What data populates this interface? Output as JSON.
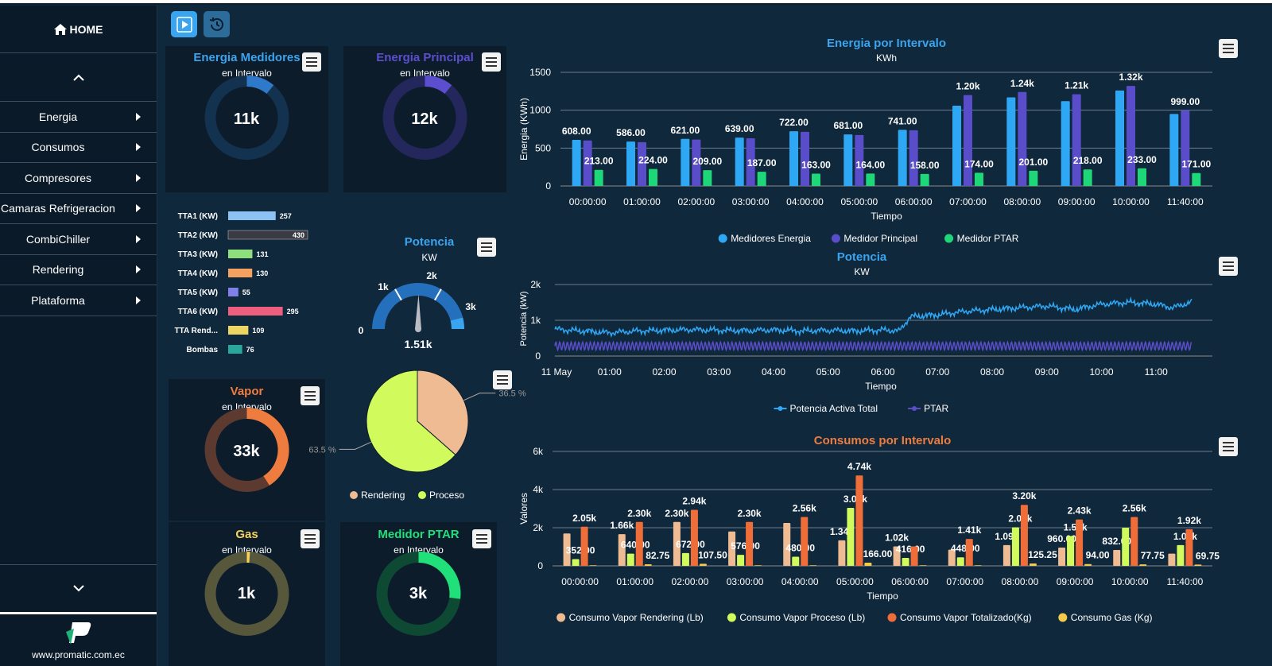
{
  "sidebar": {
    "home_label": "HOME",
    "items": [
      {
        "label": "Energia"
      },
      {
        "label": "Consumos"
      },
      {
        "label": "Compresores"
      },
      {
        "label": "Camaras Refrigeracion"
      },
      {
        "label": "CombiChiller"
      },
      {
        "label": "Rendering"
      },
      {
        "label": "Plataforma"
      }
    ],
    "footer_url": "www.promatic.com.ec"
  },
  "gauges": {
    "energia_medidores": {
      "title": "Energia Medidores",
      "subtitle": "en Intervalo",
      "value": "11k",
      "fraction": 0.11,
      "color": "#2e79c9",
      "track": "#13324f"
    },
    "energia_principal": {
      "title": "Energia Principal",
      "subtitle": "en Intervalo",
      "value": "12k",
      "fraction": 0.11,
      "color": "#5b4fd0",
      "track": "#23275c"
    },
    "vapor": {
      "title": "Vapor",
      "subtitle": "en Intervalo",
      "value": "33k",
      "fraction": 0.41,
      "color": "#ee7c3f",
      "track": "#5c3a30"
    },
    "gas": {
      "title": "Gas",
      "subtitle": "en Intervalo",
      "value": "1k",
      "fraction": 0.01,
      "color": "#f5d25a",
      "track": "#57573c"
    },
    "medidor_ptar": {
      "title": "Medidor PTAR",
      "subtitle": "en Intervalo",
      "value": "3k",
      "fraction": 0.27,
      "color": "#20e07a",
      "track": "#0e4a33"
    }
  },
  "tta_bars": {
    "max": 430,
    "items": [
      {
        "label": "TTA1 (KW)",
        "value": 257,
        "color": "#8bc1f3"
      },
      {
        "label": "TTA2 (KW)",
        "value": 430,
        "color": "#3a3a42"
      },
      {
        "label": "TTA3 (KW)",
        "value": 131,
        "color": "#8fe07c"
      },
      {
        "label": "TTA4 (KW)",
        "value": 130,
        "color": "#f5a160"
      },
      {
        "label": "TTA5 (KW)",
        "value": 55,
        "color": "#7f80e8"
      },
      {
        "label": "TTA6 (KW)",
        "value": 295,
        "color": "#ee5e7f"
      },
      {
        "label": "TTA Rend...",
        "value": 109,
        "color": "#ecd563"
      },
      {
        "label": "Bombas",
        "value": 76,
        "color": "#2aa79a"
      }
    ]
  },
  "potencia_gauge": {
    "title": "Potencia",
    "subtitle": "KW",
    "value": "1.51k",
    "numeric": 1510,
    "max": 3000,
    "ticks": [
      "0",
      "1k",
      "2k",
      "3k"
    ]
  },
  "pie": {
    "slices": [
      {
        "name": "Rendering",
        "value": 36.5,
        "label": "36.5 %",
        "color": "#efbb92"
      },
      {
        "name": "Proceso",
        "value": 63.5,
        "label": "63.5 %",
        "color": "#d1fa5d"
      }
    ]
  },
  "chart_data": [
    {
      "type": "bar",
      "title": "Energia por Intervalo",
      "subtitle": "KWh",
      "xlabel": "Tiempo",
      "ylabel": "Energia (KWh)",
      "ylim": [
        0,
        1500
      ],
      "yticks": [
        0,
        500,
        1000,
        1500
      ],
      "categories": [
        "00:00:00",
        "01:00:00",
        "02:00:00",
        "03:00:00",
        "04:00:00",
        "05:00:00",
        "06:00:00",
        "07:00:00",
        "08:00:00",
        "09:00:00",
        "10:00:00",
        "11:40:00"
      ],
      "series": [
        {
          "name": "Medidores Energia",
          "color": "#2ea8f5",
          "values": [
            608,
            586,
            621,
            639,
            722,
            681,
            741,
            1060,
            1170,
            1120,
            1260,
            950
          ],
          "labels": [
            "608.00",
            "586.00",
            "621.00",
            "639.00",
            "722.00",
            "681.00",
            "741.00",
            "",
            "",
            "",
            "",
            ""
          ]
        },
        {
          "name": "Medidor Principal",
          "color": "#5a4dc9",
          "values": [
            600,
            578,
            612,
            630,
            715,
            672,
            735,
            1200,
            1240,
            1210,
            1320,
            999
          ],
          "labels": [
            "",
            "",
            "",
            "",
            "",
            "",
            "",
            "1.20k",
            "1.24k",
            "1.21k",
            "1.32k",
            "999.00"
          ]
        },
        {
          "name": "Medidor PTAR",
          "color": "#1ed778",
          "values": [
            213,
            224,
            209,
            187,
            163,
            164,
            158,
            174,
            201,
            218,
            233,
            171
          ],
          "labels": [
            "213.00",
            "224.00",
            "209.00",
            "187.00",
            "163.00",
            "164.00",
            "158.00",
            "174.00",
            "201.00",
            "218.00",
            "233.00",
            "171.00"
          ]
        }
      ],
      "legend": "bottom"
    },
    {
      "type": "line",
      "title": "Potencia",
      "subtitle": "KW",
      "xlabel": "Tiempo",
      "ylabel": "Potencia (kW)",
      "ylim": [
        0,
        2000
      ],
      "yticks": [
        "0",
        "1k",
        "2k"
      ],
      "xticks": [
        "11 May",
        "01:00",
        "02:00",
        "03:00",
        "04:00",
        "05:00",
        "06:00",
        "07:00",
        "08:00",
        "09:00",
        "10:00",
        "11:00"
      ],
      "series": [
        {
          "name": "Potencia Activa Total",
          "color": "#2ea8f5",
          "x": [
            0,
            0.5,
            1,
            1.5,
            2,
            2.5,
            3,
            3.5,
            4,
            4.5,
            5,
            5.5,
            6,
            6.3,
            6.5,
            7,
            7.5,
            8,
            8.5,
            9,
            9.5,
            10,
            10.5,
            11,
            11.3,
            11.65
          ],
          "values": [
            750,
            700,
            650,
            700,
            720,
            740,
            720,
            710,
            730,
            700,
            720,
            700,
            730,
            700,
            1100,
            1150,
            1250,
            1300,
            1350,
            1400,
            1300,
            1450,
            1500,
            1450,
            1350,
            1510
          ]
        },
        {
          "name": "PTAR",
          "color": "#5a4dc9",
          "x": [
            0,
            11.65
          ],
          "values": [
            280,
            280
          ],
          "amplitude": 110
        }
      ],
      "legend": "bottom"
    },
    {
      "type": "bar",
      "title": "Consumos por Intervalo",
      "xlabel": "Tiempo",
      "ylabel": "Valores",
      "ylim": [
        0,
        6000
      ],
      "yticks": [
        "0",
        "2k",
        "4k",
        "6k"
      ],
      "categories": [
        "00:00:00",
        "01:00:00",
        "02:00:00",
        "03:00:00",
        "04:00:00",
        "05:00:00",
        "06:00:00",
        "07:00:00",
        "08:00:00",
        "09:00:00",
        "10:00:00",
        "11:40:00"
      ],
      "series": [
        {
          "name": "Consumo Vapor Rendering (Lb)",
          "color": "#efbb92",
          "values": [
            1700,
            1660,
            2300,
            1800,
            2250,
            1340,
            1020,
            850,
            1090,
            960,
            832,
            640
          ],
          "labels": [
            "",
            "1.66k",
            "2.30k",
            "",
            "",
            "1.34k",
            "1.02k",
            "",
            "1.09k",
            "960.00",
            "832.00",
            ""
          ]
        },
        {
          "name": "Consumo Vapor Proceso (Lb)",
          "color": "#d1fa5d",
          "values": [
            352,
            640,
            672,
            576,
            480,
            3040,
            416,
            448,
            2020,
            1570,
            2000,
            1090
          ],
          "labels": [
            "352.00",
            "640.00",
            "672.00",
            "576.00",
            "480.00",
            "3.04k",
            "416.00",
            "448.00",
            "2.02k",
            "1.57k",
            "",
            "1.09k"
          ]
        },
        {
          "name": "Consumo Vapor Totalizado(Kg)",
          "color": "#ee6d38",
          "values": [
            2050,
            2300,
            2940,
            2300,
            2560,
            4740,
            1020,
            1410,
            3200,
            2430,
            2560,
            1920
          ],
          "labels": [
            "2.05k",
            "2.30k",
            "2.94k",
            "2.30k",
            "2.56k",
            "4.74k",
            "",
            "1.41k",
            "3.20k",
            "2.43k",
            "2.56k",
            "1.92k"
          ]
        },
        {
          "name": "Consumo Gas (Kg)",
          "color": "#f5c94c",
          "values": [
            30,
            82.75,
            107.5,
            30,
            30,
            166,
            30,
            30,
            125.25,
            94,
            77.75,
            69.75
          ],
          "labels": [
            "",
            "82.75",
            "107.50",
            "",
            "",
            "166.00",
            "",
            "",
            "125.25",
            "94.00",
            "77.75",
            "69.75"
          ]
        }
      ],
      "legend": "bottom"
    }
  ]
}
